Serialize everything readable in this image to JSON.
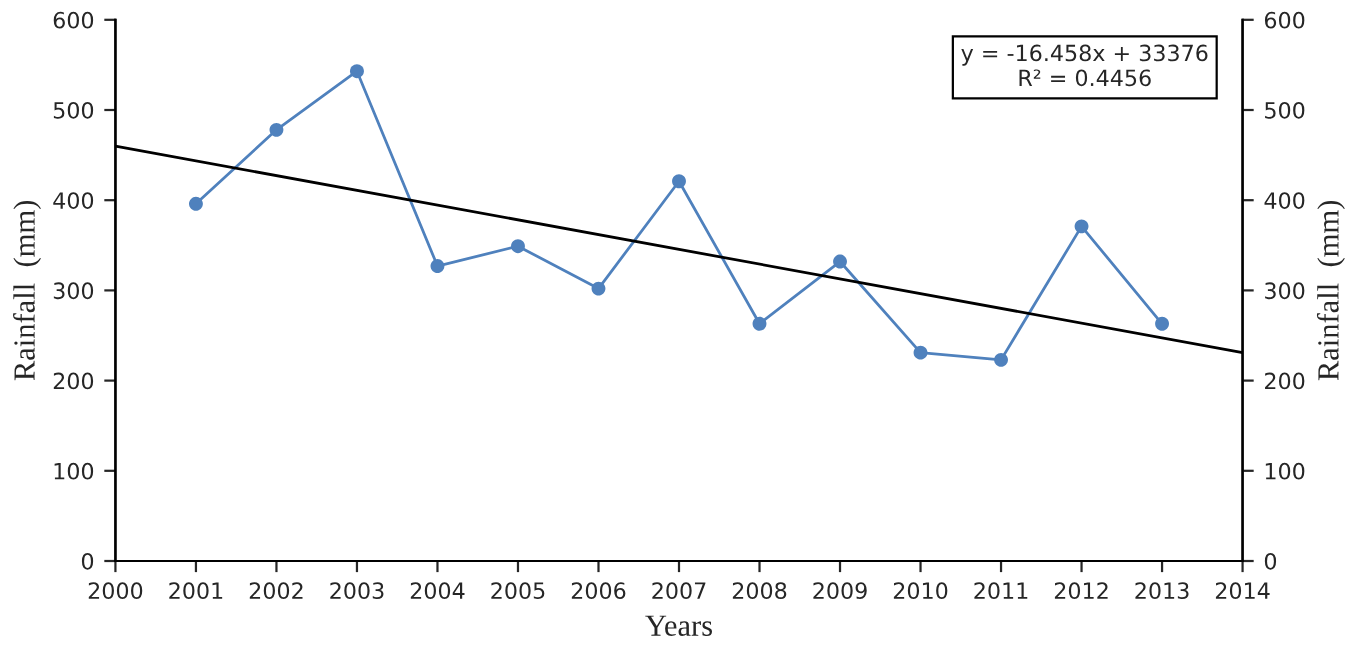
{
  "chart_data": {
    "type": "line",
    "xlabel": "Years",
    "ylabel": "Rainfall  (mm)",
    "y2label": "Rainfall  (mm)",
    "x": [
      2001,
      2002,
      2003,
      2004,
      2005,
      2006,
      2007,
      2008,
      2009,
      2010,
      2011,
      2012,
      2013
    ],
    "series": [
      {
        "color": "#4f81bd",
        "marker": "circle",
        "values": [
          396,
          478,
          543,
          327,
          349,
          302,
          421,
          263,
          332,
          231,
          223,
          371,
          263
        ]
      },
      {
        "type": "line",
        "color": "#000000",
        "marker": "none",
        "x": [
          2000,
          2014
        ],
        "values": [
          460,
          231
        ]
      }
    ],
    "xlim": [
      2000,
      2014
    ],
    "xticks": [
      2000,
      2001,
      2002,
      2003,
      2004,
      2005,
      2006,
      2007,
      2008,
      2009,
      2010,
      2011,
      2012,
      2013,
      2014
    ],
    "ylim": [
      0,
      600
    ],
    "yticks": [
      0,
      100,
      200,
      300,
      400,
      500,
      600
    ],
    "y2lim": [
      0,
      600
    ],
    "y2ticks": [
      0,
      100,
      200,
      300,
      400,
      500,
      600
    ],
    "annotations": [
      "y = -16.458x + 33376\nR² = 0.4456"
    ],
    "grid": false,
    "legend": false
  }
}
